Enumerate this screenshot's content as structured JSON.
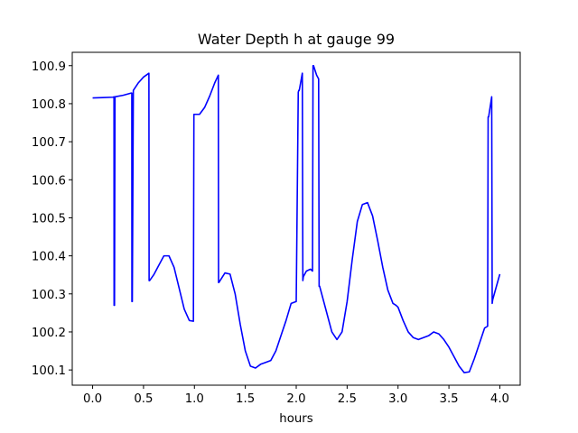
{
  "chart_data": {
    "type": "line",
    "title": "Water Depth h at gauge 99",
    "xlabel": "hours",
    "ylabel": "",
    "xlim": [
      -0.2,
      4.2
    ],
    "ylim": [
      100.06,
      100.935
    ],
    "grid": false,
    "line_color": "#0000ff",
    "xticks": [
      0.0,
      0.5,
      1.0,
      1.5,
      2.0,
      2.5,
      3.0,
      3.5,
      4.0
    ],
    "xtick_labels": [
      "0.0",
      "0.5",
      "1.0",
      "1.5",
      "2.0",
      "2.5",
      "3.0",
      "3.5",
      "4.0"
    ],
    "yticks": [
      100.1,
      100.2,
      100.3,
      100.4,
      100.5,
      100.6,
      100.7,
      100.8,
      100.9
    ],
    "ytick_labels": [
      "100.1",
      "100.2",
      "100.3",
      "100.4",
      "100.5",
      "100.6",
      "100.7",
      "100.8",
      "100.9"
    ],
    "series": [
      {
        "x": [
          0.0,
          0.1,
          0.2,
          0.21,
          0.211,
          0.215,
          0.22,
          0.3,
          0.38,
          0.385,
          0.386,
          0.39,
          0.4,
          0.45,
          0.5,
          0.553,
          0.555,
          0.56,
          0.6,
          0.65,
          0.7,
          0.75,
          0.8,
          0.85,
          0.9,
          0.95,
          0.99,
          0.995,
          1.0,
          1.05,
          1.1,
          1.15,
          1.2,
          1.235,
          1.237,
          1.24,
          1.3,
          1.35,
          1.4,
          1.45,
          1.5,
          1.55,
          1.6,
          1.65,
          1.7,
          1.75,
          1.8,
          1.85,
          1.9,
          1.95,
          2.0,
          2.02,
          2.025,
          2.03,
          2.06,
          2.065,
          2.07,
          2.1,
          2.14,
          2.16,
          2.165,
          2.17,
          2.2,
          2.22,
          2.225,
          2.23,
          2.3,
          2.35,
          2.4,
          2.45,
          2.5,
          2.55,
          2.6,
          2.65,
          2.7,
          2.75,
          2.8,
          2.85,
          2.9,
          2.95,
          2.98,
          3.0,
          3.05,
          3.1,
          3.15,
          3.2,
          3.25,
          3.3,
          3.35,
          3.4,
          3.45,
          3.5,
          3.55,
          3.6,
          3.65,
          3.7,
          3.75,
          3.8,
          3.85,
          3.88,
          3.885,
          3.89,
          3.92,
          3.925,
          3.93,
          4.0
        ],
        "y": [
          100.815,
          100.816,
          100.817,
          100.818,
          100.27,
          100.27,
          100.818,
          100.822,
          100.828,
          100.828,
          100.28,
          100.28,
          100.835,
          100.855,
          100.87,
          100.88,
          100.335,
          100.335,
          100.35,
          100.375,
          100.4,
          100.4,
          100.37,
          100.315,
          100.26,
          100.23,
          100.228,
          100.772,
          100.772,
          100.772,
          100.79,
          100.82,
          100.855,
          100.875,
          100.33,
          100.33,
          100.355,
          100.352,
          100.3,
          100.22,
          100.15,
          100.11,
          100.105,
          100.115,
          100.12,
          100.125,
          100.15,
          100.19,
          100.23,
          100.275,
          100.28,
          100.83,
          100.835,
          100.835,
          100.88,
          100.335,
          100.345,
          100.36,
          100.365,
          100.36,
          100.9,
          100.9,
          100.875,
          100.865,
          100.32,
          100.32,
          100.25,
          100.2,
          100.18,
          100.2,
          100.28,
          100.39,
          100.49,
          100.535,
          100.54,
          100.505,
          100.44,
          100.37,
          100.31,
          100.275,
          100.27,
          100.265,
          100.23,
          100.2,
          100.185,
          100.18,
          100.185,
          100.19,
          100.2,
          100.195,
          100.18,
          100.16,
          100.135,
          100.11,
          100.093,
          100.095,
          100.13,
          100.17,
          100.21,
          100.215,
          100.765,
          100.765,
          100.818,
          100.275,
          100.285,
          100.352
        ]
      }
    ]
  }
}
